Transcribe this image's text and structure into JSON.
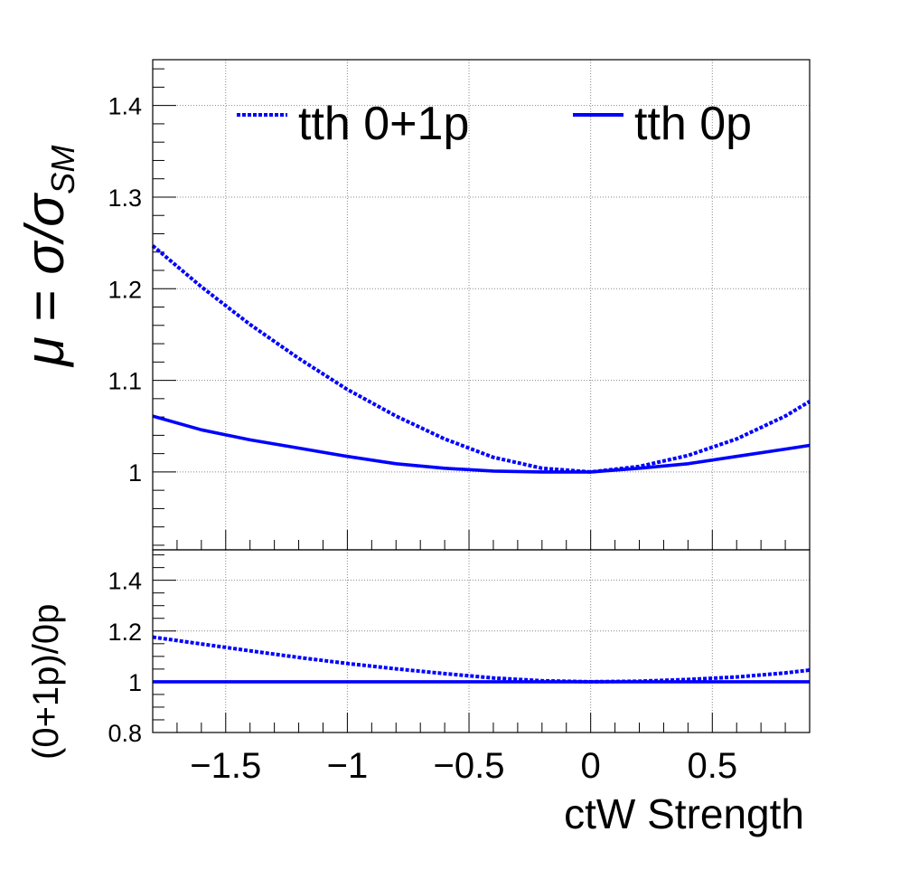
{
  "chart_data": [
    {
      "panel": "main",
      "type": "line",
      "ylabel": "μ = σ/σSM",
      "ylabel_parts": {
        "mu": "μ",
        "eq": " = ",
        "sigma": "σ/σ",
        "sub": "SM"
      },
      "xlim": [
        -1.8,
        0.9
      ],
      "ylim": [
        0.915,
        1.45
      ],
      "grid": true,
      "xticks": [
        -1.5,
        -1,
        -0.5,
        0,
        0.5
      ],
      "yticks": [
        1,
        1.1,
        1.2,
        1.3,
        1.4
      ],
      "ytick_labels": [
        "1",
        "1.1",
        "1.2",
        "1.3",
        "1.4"
      ],
      "legend_position": "top",
      "series": [
        {
          "name": "tth 0+1p",
          "style": "dotted",
          "color": "#0000ff",
          "x": [
            -1.8,
            -1.6,
            -1.4,
            -1.2,
            -1.0,
            -0.8,
            -0.6,
            -0.4,
            -0.2,
            0.0,
            0.2,
            0.4,
            0.6,
            0.8,
            0.9
          ],
          "y": [
            1.247,
            1.202,
            1.161,
            1.124,
            1.09,
            1.061,
            1.036,
            1.016,
            1.004,
            1.0,
            1.006,
            1.018,
            1.036,
            1.061,
            1.077
          ]
        },
        {
          "name": "tth 0p",
          "style": "solid",
          "color": "#0000ff",
          "x": [
            -1.8,
            -1.6,
            -1.4,
            -1.2,
            -1.0,
            -0.8,
            -0.6,
            -0.4,
            -0.2,
            0.0,
            0.2,
            0.4,
            0.6,
            0.8,
            0.9
          ],
          "y": [
            1.061,
            1.046,
            1.035,
            1.026,
            1.017,
            1.009,
            1.004,
            1.001,
            1.0,
            1.0,
            1.004,
            1.009,
            1.017,
            1.025,
            1.029
          ]
        }
      ]
    },
    {
      "panel": "ratio",
      "type": "line",
      "ylabel": "(0+1p)/0p",
      "xlabel": "ctW Strength",
      "xlim": [
        -1.8,
        0.9
      ],
      "ylim": [
        0.8,
        1.52
      ],
      "grid": true,
      "xticks": [
        -1.5,
        -1,
        -0.5,
        0,
        0.5
      ],
      "xtick_labels": [
        "−1.5",
        "−1",
        "−0.5",
        "0",
        "0.5"
      ],
      "yticks": [
        0.8,
        1,
        1.2,
        1.4
      ],
      "ytick_labels": [
        "0.8",
        "1",
        "1.2",
        "1.4"
      ],
      "series": [
        {
          "name": "tth 0+1p",
          "style": "dotted",
          "color": "#0000ff",
          "x": [
            -1.8,
            -1.6,
            -1.4,
            -1.2,
            -1.0,
            -0.8,
            -0.6,
            -0.4,
            -0.2,
            0.0,
            0.2,
            0.4,
            0.6,
            0.8,
            0.9
          ],
          "y": [
            1.176,
            1.149,
            1.122,
            1.096,
            1.072,
            1.051,
            1.032,
            1.015,
            1.004,
            1.0,
            1.002,
            1.009,
            1.019,
            1.035,
            1.046
          ]
        },
        {
          "name": "tth 0p",
          "style": "solid",
          "color": "#0000ff",
          "x": [
            -1.8,
            0.9
          ],
          "y": [
            1.0,
            1.0
          ]
        }
      ]
    }
  ]
}
